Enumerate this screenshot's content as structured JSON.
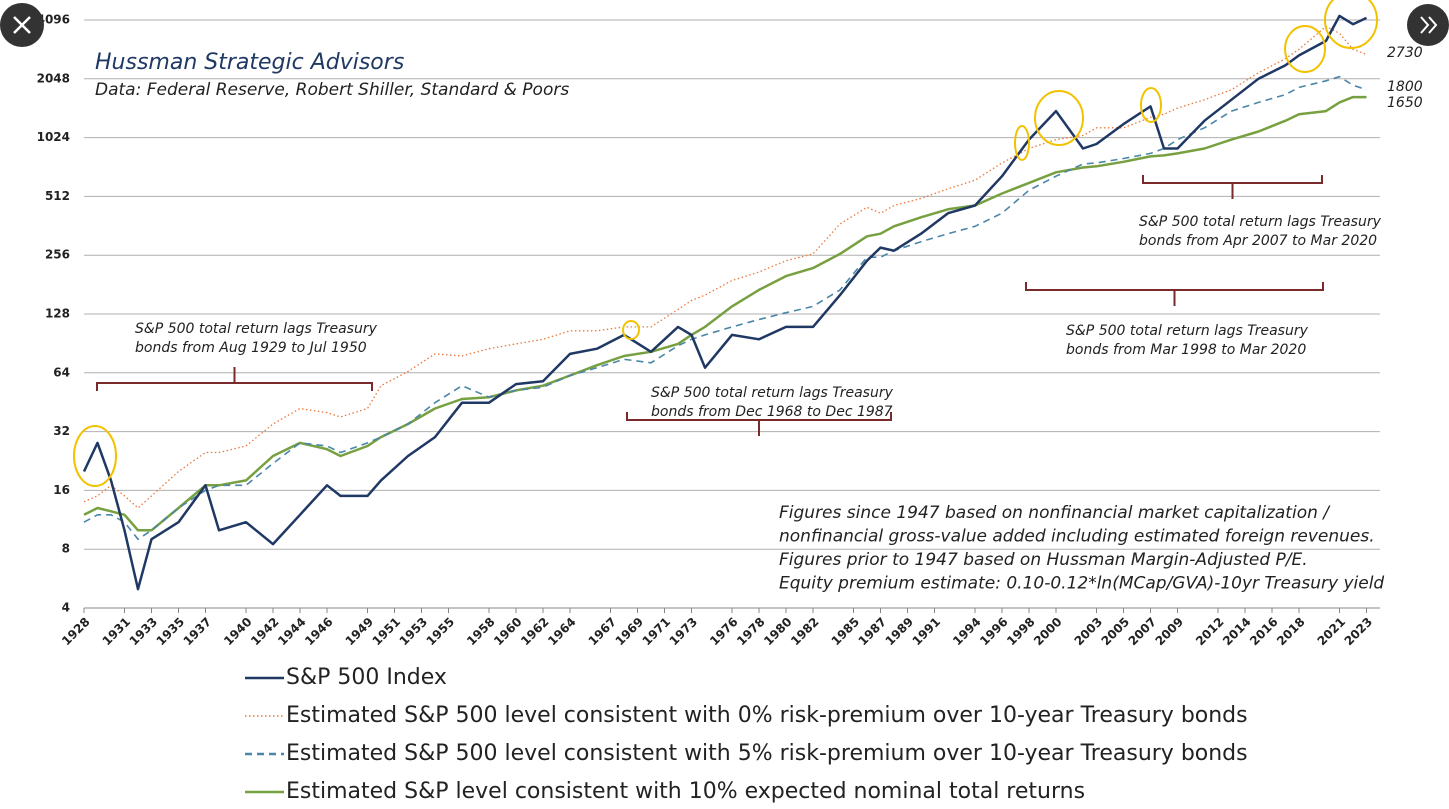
{
  "chart_data": {
    "type": "line",
    "title": "Hussman Strategic Advisors",
    "subtitle": "Data: Federal Reserve, Robert Shiller, Standard & Poors",
    "yscale": "log",
    "grid": true,
    "legend": "bottom",
    "xlim": [
      1928,
      2024
    ],
    "xticks": [
      1928,
      1931,
      1933,
      1935,
      1937,
      1940,
      1942,
      1944,
      1946,
      1949,
      1951,
      1953,
      1955,
      1958,
      1960,
      1962,
      1964,
      1967,
      1969,
      1971,
      1973,
      1976,
      1978,
      1980,
      1982,
      1985,
      1987,
      1989,
      1991,
      1994,
      1996,
      1998,
      2000,
      2003,
      2005,
      2007,
      2009,
      2012,
      2014,
      2016,
      2018,
      2021,
      2023
    ],
    "ylim": [
      4,
      4096
    ],
    "yticks": [
      4,
      8,
      16,
      32,
      64,
      128,
      256,
      512,
      1024,
      2048,
      4096
    ],
    "x": [
      1928,
      1929,
      1930,
      1931,
      1932,
      1933,
      1935,
      1937,
      1938,
      1940,
      1942,
      1944,
      1946,
      1947,
      1949,
      1950,
      1952,
      1954,
      1956,
      1958,
      1960,
      1962,
      1964,
      1966,
      1968,
      1970,
      1972,
      1973,
      1974,
      1976,
      1978,
      1980,
      1982,
      1984,
      1986,
      1987,
      1988,
      1990,
      1992,
      1994,
      1996,
      1998,
      2000,
      2002,
      2003,
      2005,
      2007,
      2008,
      2009,
      2011,
      2013,
      2015,
      2017,
      2018,
      2020,
      2021,
      2022,
      2023
    ],
    "series": [
      {
        "name": "S&P 500 Index",
        "color": "#1f3864",
        "style": "solid",
        "values": [
          20,
          28,
          18,
          10,
          5,
          9,
          11,
          17,
          10,
          11,
          8.5,
          12,
          17,
          15,
          15,
          18,
          24,
          30,
          45,
          45,
          56,
          58,
          80,
          85,
          100,
          82,
          110,
          100,
          68,
          100,
          95,
          110,
          110,
          160,
          240,
          280,
          270,
          330,
          420,
          460,
          650,
          1000,
          1400,
          900,
          950,
          1200,
          1480,
          900,
          900,
          1250,
          1600,
          2050,
          2400,
          2700,
          3200,
          4300,
          3900,
          4200
        ]
      },
      {
        "name": "Estimated S&P 500 level consistent with 0% risk-premium over 10-year Treasury bonds",
        "color": "#e8783a",
        "style": "dotted",
        "values": [
          14,
          15,
          17,
          15,
          13,
          15,
          20,
          25,
          25,
          27,
          35,
          42,
          40,
          38,
          42,
          55,
          65,
          80,
          78,
          85,
          90,
          95,
          105,
          105,
          110,
          110,
          135,
          150,
          160,
          190,
          210,
          240,
          260,
          370,
          450,
          420,
          460,
          500,
          560,
          620,
          760,
          900,
          1000,
          1050,
          1150,
          1150,
          1300,
          1350,
          1450,
          1600,
          1800,
          2200,
          2600,
          2900,
          3800,
          3500,
          2900,
          2730
        ]
      },
      {
        "name": "Estimated S&P 500 level consistent with 5% risk-premium over 10-year Treasury bonds",
        "color": "#4a86a8",
        "style": "dashed",
        "values": [
          11,
          12,
          12,
          11,
          9,
          10,
          13,
          16,
          17,
          17,
          22,
          28,
          27,
          25,
          28,
          30,
          35,
          45,
          55,
          48,
          52,
          54,
          62,
          68,
          75,
          72,
          88,
          95,
          100,
          110,
          120,
          130,
          140,
          170,
          250,
          250,
          270,
          300,
          330,
          360,
          420,
          550,
          650,
          750,
          760,
          800,
          850,
          900,
          1000,
          1150,
          1400,
          1550,
          1700,
          1850,
          2000,
          2100,
          1900,
          1800
        ]
      },
      {
        "name": "Estimated S&P level consistent with 10% expected nominal total returns",
        "color": "#77a040",
        "style": "solid",
        "values": [
          12,
          13,
          12.5,
          12,
          10,
          10,
          13,
          17,
          17,
          18,
          24,
          28,
          26,
          24,
          27,
          30,
          35,
          42,
          47,
          48,
          52,
          55,
          62,
          70,
          78,
          82,
          90,
          100,
          110,
          140,
          170,
          200,
          220,
          260,
          320,
          330,
          360,
          400,
          440,
          460,
          530,
          600,
          680,
          720,
          730,
          770,
          820,
          830,
          850,
          900,
          1000,
          1100,
          1250,
          1350,
          1400,
          1550,
          1650,
          1650
        ]
      }
    ],
    "annotations": [
      [
        "S&P 500 total return lags Treasury",
        "bonds from Aug 1929 to Jul 1950"
      ],
      [
        "S&P 500 total return lags Treasury",
        "bonds from Dec 1968 to Dec 1987"
      ],
      [
        "S&P 500 total return lags Treasury",
        "bonds from Mar 1998 to Mar 2020"
      ],
      [
        "S&P 500 total return lags Treasury",
        "bonds from Apr 2007 to Mar 2020"
      ]
    ],
    "note": [
      "Figures since 1947 based on nonfinancial market capitalization /",
      "nonfinancial gross-value added including estimated foreign revenues.",
      "Figures prior to 1947 based on Hussman Margin-Adjusted P/E.",
      "Equity premium estimate: 0.10-0.12*ln(MCap/GVA)-10yr Treasury yield"
    ]
  }
}
